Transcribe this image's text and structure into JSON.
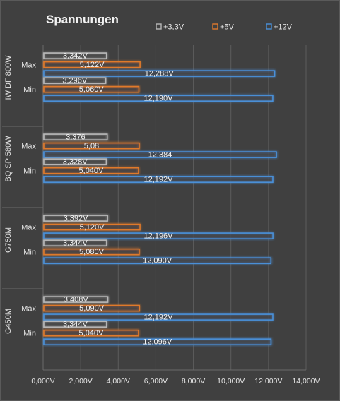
{
  "chart_data": {
    "type": "bar",
    "orientation": "horizontal",
    "title": "Spannungen",
    "xlim": [
      0,
      14
    ],
    "x_ticks": [
      "0,000V",
      "2,000V",
      "4,000V",
      "6,000V",
      "8,000V",
      "10,000V",
      "12,000V",
      "14,000V"
    ],
    "grid": true,
    "legend_position": "top-right",
    "series": [
      {
        "name": "+3,3V",
        "color": "#b8b8b8"
      },
      {
        "name": "+5V",
        "color": "#e07a2c"
      },
      {
        "name": "+12V",
        "color": "#4a90d9"
      }
    ],
    "groups": [
      {
        "label": "IW DF 800W",
        "rows": [
          {
            "label": "Max",
            "values": [
              3.342,
              5.122,
              12.288
            ],
            "labels": [
              "3,342V",
              "5,122V",
              "12,288V"
            ]
          },
          {
            "label": "Min",
            "values": [
              3.296,
              5.06,
              12.19
            ],
            "labels": [
              "3,296V",
              "5,060V",
              "12,190V"
            ]
          }
        ]
      },
      {
        "label": "BQ SP 580W",
        "rows": [
          {
            "label": "Max",
            "values": [
              3.376,
              5.08,
              12.384
            ],
            "labels": [
              "3,376",
              "5,08",
              "12,384"
            ]
          },
          {
            "label": "Min",
            "values": [
              3.328,
              5.04,
              12.192
            ],
            "labels": [
              "3,328V",
              "5,040V",
              "12,192V"
            ]
          }
        ]
      },
      {
        "label": "G750M",
        "rows": [
          {
            "label": "Max",
            "values": [
              3.392,
              5.12,
              12.196
            ],
            "labels": [
              "3,392V",
              "5,120V",
              "12,196V"
            ]
          },
          {
            "label": "Min",
            "values": [
              3.344,
              5.08,
              12.09
            ],
            "labels": [
              "3,344V",
              "5,080V",
              "12,090V"
            ]
          }
        ]
      },
      {
        "label": "G450M",
        "rows": [
          {
            "label": "Max",
            "values": [
              3.408,
              5.09,
              12.192
            ],
            "labels": [
              "3,408V",
              "5,090V",
              "12,192V"
            ]
          },
          {
            "label": "Min",
            "values": [
              3.344,
              5.04,
              12.096
            ],
            "labels": [
              "3,344V",
              "5,040V",
              "12,096V"
            ]
          }
        ]
      }
    ]
  }
}
